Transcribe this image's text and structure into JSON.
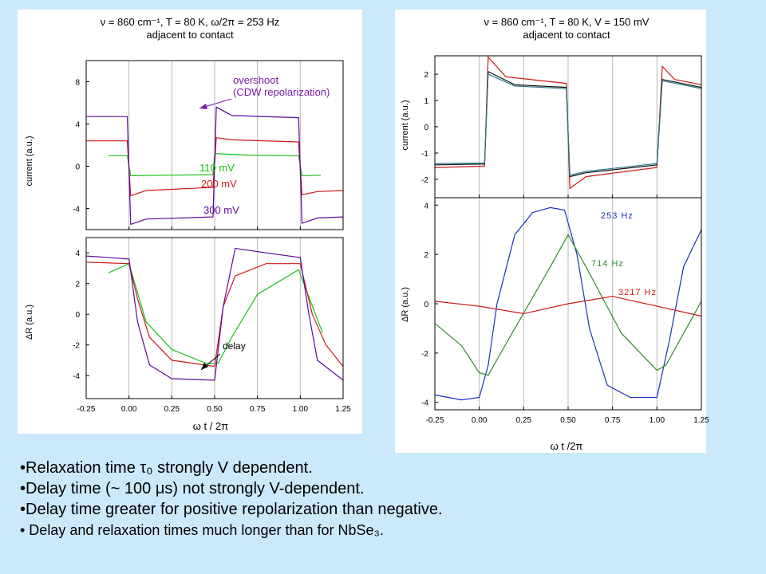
{
  "colors": {
    "background": "#cce8fb",
    "blue": "#1a2fbf",
    "green": "#18c018",
    "darkgreen": "#2e8b2e",
    "red": "#cc1a1a",
    "purple": "#5a0a9c",
    "teal": "#2a7a8a",
    "black": "#101010",
    "gridline": "#b8b8b8",
    "annot": "#7a1aa8"
  },
  "left": {
    "header_line1": "ν = 860 cm⁻¹, T = 80 K, ω/2π = 253 Hz",
    "header_line2": "adjacent to contact",
    "xlabel": "ω t / 2π",
    "top_ylabel": "current (a.u.)",
    "bottom_ylabel": "ΔR (a.u.)",
    "annot_overshoot_1": "overshoot",
    "annot_overshoot_2": "(CDW repolarization)",
    "annot_delay": "delay",
    "label_110": "110 mV",
    "label_200": "200 mV",
    "label_300": "300 mV"
  },
  "right": {
    "header_line1": "ν = 860 cm⁻¹, T = 80 K, V = 150 mV",
    "header_line2": "adjacent to contact",
    "xlabel": "ω t /2π",
    "top_ylabel": "current (a.u.)",
    "bottom_ylabel": "ΔR (a.u.)",
    "label_253": "253 Hz",
    "label_714": "714 Hz",
    "label_3217": "3217 Hz"
  },
  "bullets": [
    "•Relaxation time τ₀ strongly V dependent.",
    "•Delay time (~ 100 μs) not strongly V-dependent.",
    "•Delay time greater for positive repolarization than negative.",
    "• Delay and relaxation times much longer than for NbSe₃."
  ],
  "chart_data": [
    {
      "type": "line",
      "title": "ν = 860 cm⁻¹, T = 80 K, ω/2π = 253 Hz",
      "subtitle": "adjacent to contact",
      "xlabel": "ω t / 2π",
      "ylabel": "current (a.u.)",
      "xlim": [
        -0.25,
        1.25
      ],
      "ylim": [
        -6,
        10
      ],
      "x_ticks": [
        "-0.25",
        "0.00",
        "0.25",
        "0.50",
        "0.75",
        "1.00",
        "1.25"
      ],
      "y_ticks": [
        "-4",
        "0",
        "4",
        "8"
      ],
      "grid": "vertical",
      "series": [
        {
          "name": "110 mV",
          "color": "green",
          "points": [
            [
              -0.12,
              1.0
            ],
            [
              -0.01,
              1.0
            ],
            [
              0.01,
              -0.9
            ],
            [
              0.2,
              -0.85
            ],
            [
              0.49,
              -0.8
            ],
            [
              0.5,
              1.2
            ],
            [
              0.7,
              1.05
            ],
            [
              0.99,
              1.0
            ],
            [
              1.01,
              -0.9
            ],
            [
              1.12,
              -0.85
            ]
          ]
        },
        {
          "name": "200 mV",
          "color": "red",
          "points": [
            [
              -0.25,
              2.4
            ],
            [
              -0.01,
              2.4
            ],
            [
              0.01,
              -2.8
            ],
            [
              0.1,
              -2.3
            ],
            [
              0.49,
              -2.0
            ],
            [
              0.51,
              2.7
            ],
            [
              0.6,
              2.5
            ],
            [
              0.99,
              2.3
            ],
            [
              1.01,
              -2.7
            ],
            [
              1.1,
              -2.4
            ],
            [
              1.25,
              -2.3
            ]
          ]
        },
        {
          "name": "300 mV",
          "color": "purple",
          "points": [
            [
              -0.25,
              4.7
            ],
            [
              -0.01,
              4.7
            ],
            [
              0.01,
              -5.5
            ],
            [
              0.1,
              -5.0
            ],
            [
              0.49,
              -4.8
            ],
            [
              0.51,
              5.6
            ],
            [
              0.6,
              4.8
            ],
            [
              0.99,
              4.6
            ],
            [
              1.01,
              -5.4
            ],
            [
              1.1,
              -4.9
            ],
            [
              1.25,
              -4.8
            ]
          ]
        }
      ],
      "annotations": [
        "overshoot",
        "(CDW repolarization)"
      ]
    },
    {
      "type": "line",
      "xlabel": "ω t / 2π",
      "ylabel": "ΔR (a.u.)",
      "xlim": [
        -0.25,
        1.25
      ],
      "ylim": [
        -5.5,
        5
      ],
      "x_ticks": [
        "-0.25",
        "0.00",
        "0.25",
        "0.50",
        "0.75",
        "1.00",
        "1.25"
      ],
      "y_ticks": [
        "-4",
        "-2",
        "0",
        "2",
        "4"
      ],
      "grid": "vertical",
      "series": [
        {
          "name": "110 mV",
          "color": "green",
          "points": [
            [
              -0.12,
              2.7
            ],
            [
              0.0,
              3.3
            ],
            [
              0.1,
              -0.5
            ],
            [
              0.25,
              -2.3
            ],
            [
              0.45,
              -3.2
            ],
            [
              0.52,
              -3.2
            ],
            [
              0.6,
              -1.5
            ],
            [
              0.75,
              1.3
            ],
            [
              0.99,
              2.9
            ],
            [
              1.13,
              -1.2
            ]
          ]
        },
        {
          "name": "200 mV",
          "color": "red",
          "points": [
            [
              -0.25,
              3.4
            ],
            [
              0.0,
              3.3
            ],
            [
              0.05,
              1.0
            ],
            [
              0.12,
              -1.5
            ],
            [
              0.25,
              -3.0
            ],
            [
              0.5,
              -3.4
            ],
            [
              0.55,
              0.5
            ],
            [
              0.62,
              2.5
            ],
            [
              0.8,
              3.3
            ],
            [
              1.0,
              3.3
            ],
            [
              1.07,
              0.0
            ],
            [
              1.15,
              -2.0
            ],
            [
              1.25,
              -3.4
            ]
          ]
        },
        {
          "name": "300 mV",
          "color": "purple",
          "points": [
            [
              -0.25,
              3.8
            ],
            [
              0.0,
              3.6
            ],
            [
              0.05,
              -0.5
            ],
            [
              0.12,
              -3.3
            ],
            [
              0.25,
              -4.2
            ],
            [
              0.5,
              -4.3
            ],
            [
              0.55,
              0.5
            ],
            [
              0.62,
              4.3
            ],
            [
              0.8,
              4.0
            ],
            [
              1.0,
              3.7
            ],
            [
              1.05,
              0.0
            ],
            [
              1.1,
              -3.0
            ],
            [
              1.25,
              -4.3
            ]
          ]
        }
      ],
      "annotations": [
        "delay"
      ]
    },
    {
      "type": "line",
      "title": "ν = 860 cm⁻¹, T = 80 K, V = 150 mV",
      "subtitle": "adjacent to contact",
      "xlabel": "ω t /2π",
      "ylabel": "current (a.u.)",
      "xlim": [
        -0.25,
        1.25
      ],
      "ylim": [
        -2.7,
        2.7
      ],
      "x_ticks": [
        "-0.25",
        "0.00",
        "0.25",
        "0.50",
        "0.75",
        "1.00",
        "1.25"
      ],
      "y_ticks": [
        "-2",
        "-1",
        "0",
        "1",
        "2"
      ],
      "grid": "vertical",
      "series": [
        {
          "name": "",
          "color": "red",
          "points": [
            [
              -0.25,
              -1.55
            ],
            [
              0.03,
              -1.5
            ],
            [
              0.05,
              2.65
            ],
            [
              0.15,
              1.9
            ],
            [
              0.49,
              1.65
            ],
            [
              0.51,
              -2.35
            ],
            [
              0.6,
              -1.9
            ],
            [
              1.0,
              -1.55
            ],
            [
              1.03,
              2.3
            ],
            [
              1.1,
              1.8
            ],
            [
              1.25,
              1.6
            ]
          ]
        },
        {
          "name": "",
          "color": "black",
          "points": [
            [
              -0.25,
              -1.45
            ],
            [
              0.03,
              -1.42
            ],
            [
              0.05,
              2.1
            ],
            [
              0.2,
              1.6
            ],
            [
              0.49,
              1.5
            ],
            [
              0.51,
              -1.9
            ],
            [
              0.6,
              -1.75
            ],
            [
              1.0,
              -1.45
            ],
            [
              1.03,
              1.8
            ],
            [
              1.25,
              1.5
            ]
          ]
        },
        {
          "name": "",
          "color": "teal",
          "points": [
            [
              -0.25,
              -1.4
            ],
            [
              0.03,
              -1.38
            ],
            [
              0.05,
              2.0
            ],
            [
              0.2,
              1.55
            ],
            [
              0.49,
              1.45
            ],
            [
              0.51,
              -1.85
            ],
            [
              0.6,
              -1.7
            ],
            [
              1.0,
              -1.4
            ],
            [
              1.03,
              1.75
            ],
            [
              1.25,
              1.45
            ]
          ]
        }
      ]
    },
    {
      "type": "line",
      "xlabel": "ω t /2π",
      "ylabel": "ΔR (a.u.)",
      "xlim": [
        -0.25,
        1.25
      ],
      "ylim": [
        -4.3,
        4.3
      ],
      "x_ticks": [
        "-0.25",
        "0.00",
        "0.25",
        "0.50",
        "0.75",
        "1.00",
        "1.25"
      ],
      "y_ticks": [
        "-4",
        "-2",
        "0",
        "2",
        "4"
      ],
      "grid": "vertical",
      "series": [
        {
          "name": "253 Hz",
          "color": "blue",
          "points": [
            [
              -0.25,
              -3.7
            ],
            [
              -0.1,
              -3.9
            ],
            [
              0.0,
              -3.8
            ],
            [
              0.05,
              -2.5
            ],
            [
              0.1,
              0.0
            ],
            [
              0.2,
              2.8
            ],
            [
              0.3,
              3.7
            ],
            [
              0.4,
              3.9
            ],
            [
              0.48,
              3.8
            ],
            [
              0.55,
              2.0
            ],
            [
              0.62,
              -1.0
            ],
            [
              0.72,
              -3.3
            ],
            [
              0.85,
              -3.8
            ],
            [
              1.0,
              -3.8
            ],
            [
              1.07,
              -1.5
            ],
            [
              1.15,
              1.5
            ],
            [
              1.25,
              3.0
            ]
          ]
        },
        {
          "name": "714 Hz",
          "color": "darkgreen",
          "points": [
            [
              -0.25,
              -0.8
            ],
            [
              -0.1,
              -1.7
            ],
            [
              0.0,
              -2.8
            ],
            [
              0.05,
              -2.9
            ],
            [
              0.2,
              -1.0
            ],
            [
              0.4,
              1.5
            ],
            [
              0.5,
              2.8
            ],
            [
              0.6,
              1.5
            ],
            [
              0.8,
              -1.2
            ],
            [
              1.0,
              -2.7
            ],
            [
              1.05,
              -2.5
            ],
            [
              1.25,
              0.1
            ]
          ]
        },
        {
          "name": "3217 Hz",
          "color": "red",
          "points": [
            [
              -0.25,
              0.1
            ],
            [
              0.0,
              -0.1
            ],
            [
              0.25,
              -0.4
            ],
            [
              0.5,
              0.0
            ],
            [
              0.75,
              0.3
            ],
            [
              1.0,
              -0.1
            ],
            [
              1.25,
              -0.5
            ]
          ]
        }
      ]
    }
  ]
}
